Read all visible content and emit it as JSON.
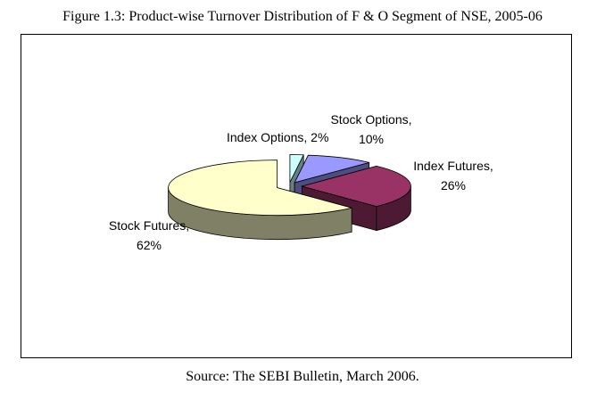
{
  "figure": {
    "title": "Figure 1.3: Product-wise Turnover Distribution of F & O Segment of NSE, 2005-06",
    "source": "Source: The SEBI Bulletin, March 2006."
  },
  "chart_data": {
    "type": "pie",
    "three_d": true,
    "exploded": true,
    "title": "",
    "slices": [
      {
        "name": "Index Options",
        "value": 2,
        "label_line1": "Index Options, 2%",
        "label_line2": "",
        "color": "#ccffff",
        "side_color": "#668080"
      },
      {
        "name": "Stock Options",
        "value": 10,
        "label_line1": "Stock Options,",
        "label_line2": "10%",
        "color": "#9999ff",
        "side_color": "#4d4d80"
      },
      {
        "name": "Index Futures",
        "value": 26,
        "label_line1": "Index Futures,",
        "label_line2": "26%",
        "color": "#993366",
        "side_color": "#4d1a33"
      },
      {
        "name": "Stock Futures",
        "value": 62,
        "label_line1": "Stock Futures,",
        "label_line2": "62%",
        "color": "#ffffcc",
        "side_color": "#808066"
      }
    ]
  }
}
